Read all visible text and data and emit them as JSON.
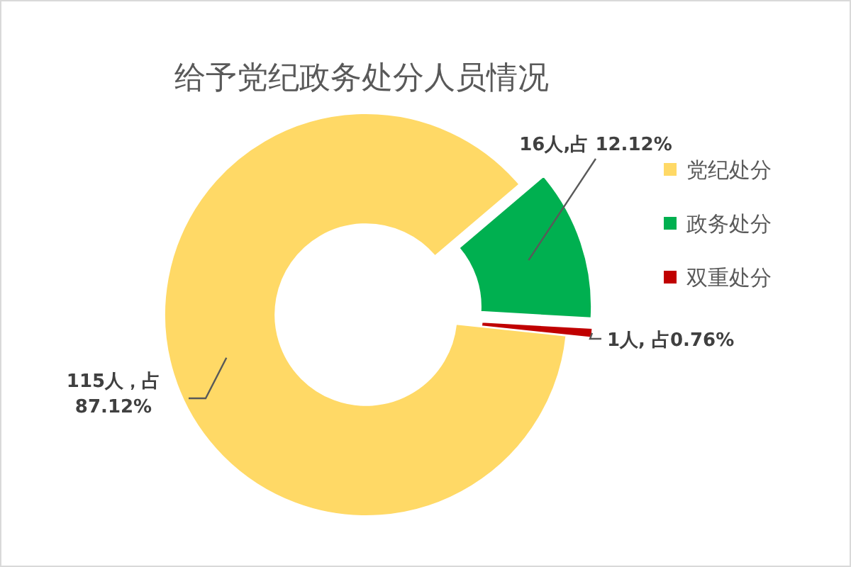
{
  "chart_data": {
    "type": "donut",
    "title": "给予党纪政务处分人员情况",
    "categories": [
      "党纪处分",
      "政务处分",
      "双重处分"
    ],
    "values": [
      115,
      16,
      1
    ],
    "value_labels": [
      "115人，占 87.12%",
      "16人,占 12.12%",
      "1人, 占0.76%"
    ],
    "colors": [
      "#ffd966",
      "#00b050",
      "#c00000"
    ],
    "legend": "right"
  }
}
